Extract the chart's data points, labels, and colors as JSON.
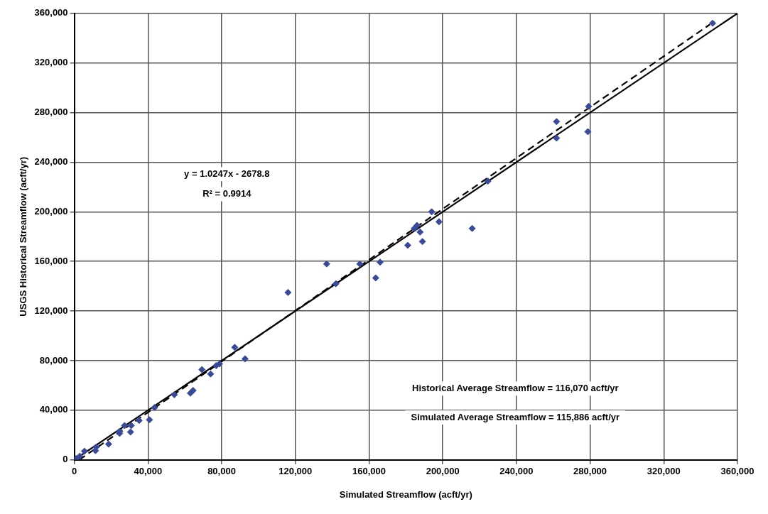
{
  "chart_data": {
    "type": "scatter",
    "xlabel": "Simulated Streamflow (acft/yr)",
    "ylabel": "USGS Historical Streamflow (acft/yr)",
    "xlim": [
      0,
      360000
    ],
    "ylim": [
      0,
      360000
    ],
    "xticks": [
      0,
      {
        "value": 40000,
        "label": "40,000"
      },
      {
        "value": 80000,
        "label": "80,000"
      },
      {
        "value": 120000,
        "label": "120,000"
      },
      {
        "value": 160000,
        "label": "160,000"
      },
      {
        "value": 200000,
        "label": "200,000"
      },
      {
        "value": 240000,
        "label": "240,000"
      },
      {
        "value": 280000,
        "label": "280,000"
      },
      {
        "value": 320000,
        "label": "320,000"
      },
      {
        "value": 360000,
        "label": "360,000"
      }
    ],
    "yticks": [
      0,
      {
        "value": 40000,
        "label": "40,000"
      },
      {
        "value": 80000,
        "label": "80,000"
      },
      {
        "value": 120000,
        "label": "120,000"
      },
      {
        "value": 160000,
        "label": "160,000"
      },
      {
        "value": 200000,
        "label": "200,000"
      },
      {
        "value": 240000,
        "label": "240,000"
      },
      {
        "value": 280000,
        "label": "280,000"
      },
      {
        "value": 320000,
        "label": "320,000"
      },
      {
        "value": 360000,
        "label": "360,000"
      }
    ],
    "grid": true,
    "marker": "diamond",
    "legend": false,
    "series": [
      {
        "type": "scatter",
        "color": "#3a4a9a",
        "x": [
          1000,
          3000,
          5500,
          11500,
          11900,
          18600,
          24600,
          24600,
          27300,
          30500,
          30900,
          35200,
          40800,
          43600,
          54300,
          63000,
          64500,
          69300,
          74000,
          77000,
          78800,
          87100,
          92700,
          116000,
          137000,
          142000,
          155000,
          163600,
          166000,
          181000,
          184600,
          186000,
          187700,
          189000,
          194000,
          198000,
          216000,
          224500,
          261800,
          261800,
          278800,
          279200,
          346500
        ],
        "values": [
          1000,
          3000,
          7000,
          7500,
          10400,
          12700,
          21400,
          23000,
          27700,
          22500,
          27700,
          31800,
          32300,
          42200,
          52600,
          53800,
          56000,
          72800,
          69300,
          76000,
          77400,
          90700,
          81500,
          135000,
          158000,
          142000,
          158000,
          146700,
          159400,
          173000,
          186600,
          189000,
          183700,
          176000,
          200000,
          192000,
          186600,
          224700,
          272700,
          259400,
          264600,
          285000,
          352000
        ]
      },
      {
        "type": "line",
        "color": "#000000",
        "marker": "none",
        "line_style": "solid",
        "x": [
          0,
          360000
        ],
        "values": [
          0,
          360000
        ]
      },
      {
        "type": "line",
        "color": "#000000",
        "marker": "none",
        "line_style": "dashed",
        "x": [
          2614,
          345000
        ],
        "values": [
          0,
          351000
        ]
      }
    ],
    "annotations": [
      "y = 1.0247x - 2678.8",
      "R² = 0.9914",
      "Historical Average Streamflow = 116,070 acft/yr",
      "Simulated Average Streamflow = 115,886 acft/yr"
    ]
  }
}
